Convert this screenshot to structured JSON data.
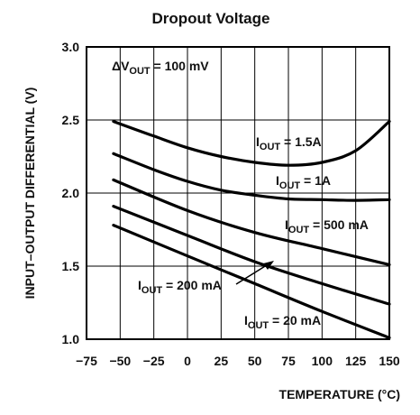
{
  "chart_data": {
    "type": "line",
    "title": "Dropout Voltage",
    "xlabel": "TEMPERATURE (°C)",
    "ylabel": "INPUT–OUTPUT DIFFERENTIAL (V)",
    "xlim": [
      -75,
      150
    ],
    "ylim": [
      1.0,
      3.0
    ],
    "x_ticks": [
      -75,
      -50,
      -25,
      0,
      25,
      50,
      75,
      100,
      125,
      150
    ],
    "x_tick_labels": [
      "−75",
      "−50",
      "−25",
      "0",
      "25",
      "50",
      "75",
      "100",
      "125",
      "150"
    ],
    "y_ticks": [
      1.0,
      1.5,
      2.0,
      2.5,
      3.0
    ],
    "y_tick_labels": [
      "1.0",
      "1.5",
      "2.0",
      "2.5",
      "3.0"
    ],
    "grid": true,
    "condition": {
      "prefix": "ΔV",
      "sub": "OUT",
      "suffix": " = 100 mV"
    },
    "series": [
      {
        "name": "IOUT = 1.5A",
        "label": {
          "prefix": "I",
          "sub": "OUT",
          "suffix": " = 1.5A"
        },
        "points": [
          [
            -55,
            2.49
          ],
          [
            -25,
            2.39
          ],
          [
            0,
            2.31
          ],
          [
            25,
            2.25
          ],
          [
            50,
            2.21
          ],
          [
            75,
            2.19
          ],
          [
            100,
            2.21
          ],
          [
            125,
            2.29
          ],
          [
            150,
            2.49
          ]
        ]
      },
      {
        "name": "IOUT = 1A",
        "label": {
          "prefix": "I",
          "sub": "OUT",
          "suffix": " = 1A"
        },
        "points": [
          [
            -55,
            2.27
          ],
          [
            -25,
            2.16
          ],
          [
            0,
            2.08
          ],
          [
            25,
            2.02
          ],
          [
            50,
            1.985
          ],
          [
            75,
            1.96
          ],
          [
            100,
            1.955
          ],
          [
            125,
            1.95
          ],
          [
            150,
            1.955
          ]
        ]
      },
      {
        "name": "IOUT = 500 mA",
        "label": {
          "prefix": "I",
          "sub": "OUT",
          "suffix": " = 500 mA"
        },
        "points": [
          [
            -55,
            2.09
          ],
          [
            0,
            1.88
          ],
          [
            50,
            1.73
          ],
          [
            100,
            1.62
          ],
          [
            150,
            1.51
          ]
        ]
      },
      {
        "name": "IOUT = 200 mA",
        "label": {
          "prefix": "I",
          "sub": "OUT",
          "suffix": " = 200 mA"
        },
        "points": [
          [
            -55,
            1.91
          ],
          [
            0,
            1.71
          ],
          [
            50,
            1.53
          ],
          [
            100,
            1.38
          ],
          [
            150,
            1.24
          ]
        ]
      },
      {
        "name": "IOUT = 20 mA",
        "label": {
          "prefix": "I",
          "sub": "OUT",
          "suffix": " = 20 mA"
        },
        "points": [
          [
            -55,
            1.78
          ],
          [
            0,
            1.57
          ],
          [
            50,
            1.38
          ],
          [
            100,
            1.19
          ],
          [
            150,
            1.01
          ]
        ]
      }
    ]
  }
}
